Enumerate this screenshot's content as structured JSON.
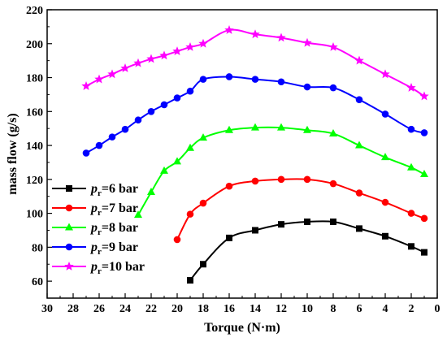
{
  "chart_data": {
    "type": "line",
    "title": "",
    "xlabel": "Torque (N·m)",
    "ylabel": "mass flow (g/s)",
    "xlim": [
      30,
      0
    ],
    "ylim": [
      50,
      220
    ],
    "x_reversed": true,
    "x_ticks": [
      30,
      28,
      26,
      24,
      22,
      20,
      18,
      16,
      14,
      12,
      10,
      8,
      6,
      4,
      2,
      0
    ],
    "y_ticks": [
      60,
      80,
      100,
      120,
      140,
      160,
      180,
      200,
      220
    ],
    "grid": false,
    "legend_position": "lower-left",
    "series": [
      {
        "name": "6 bar",
        "legend_prefix": "p",
        "legend_sub": "r",
        "legend_suffix": "=6 bar",
        "color": "#000000",
        "marker": "square",
        "x": [
          19,
          18,
          16,
          14,
          12,
          10,
          8,
          6,
          4,
          2,
          1
        ],
        "y": [
          60.5,
          70,
          85.5,
          90,
          93.5,
          95,
          95,
          91,
          86.5,
          80.5,
          77
        ]
      },
      {
        "name": "7 bar",
        "legend_prefix": "p",
        "legend_sub": "r",
        "legend_suffix": "=7 bar",
        "color": "#ff0000",
        "marker": "circle",
        "x": [
          20,
          19,
          18,
          16,
          14,
          12,
          10,
          8,
          6,
          4,
          2,
          1
        ],
        "y": [
          84.5,
          99.5,
          106,
          116,
          119,
          120,
          120,
          117.5,
          112,
          106.5,
          100,
          97
        ]
      },
      {
        "name": "8 bar",
        "legend_prefix": "p",
        "legend_sub": "r",
        "legend_suffix": "=8 bar",
        "color": "#00ff00",
        "marker": "triangle",
        "x": [
          23,
          22,
          21,
          20,
          19,
          18,
          16,
          14,
          12,
          10,
          8,
          6,
          4,
          2,
          1
        ],
        "y": [
          99,
          112.5,
          125,
          130.5,
          138.5,
          144.5,
          149,
          150.5,
          150.5,
          149,
          147,
          140,
          133,
          127,
          123
        ]
      },
      {
        "name": "9 bar",
        "legend_prefix": "p",
        "legend_sub": "r",
        "legend_suffix": "=9 bar",
        "color": "#0000ff",
        "marker": "circle",
        "x": [
          27,
          26,
          25,
          24,
          23,
          22,
          21,
          20,
          19,
          18,
          16,
          14,
          12,
          10,
          8,
          6,
          4,
          2,
          1
        ],
        "y": [
          135.5,
          140,
          145,
          149.5,
          155,
          160,
          164,
          168,
          172,
          179,
          180.5,
          179,
          177.5,
          174.5,
          174,
          167,
          158.5,
          149.5,
          147.5
        ]
      },
      {
        "name": "10 bar",
        "legend_prefix": "p",
        "legend_sub": "r",
        "legend_suffix": "=10 bar",
        "color": "#ff00ff",
        "marker": "star",
        "x": [
          27,
          26,
          25,
          24,
          23,
          22,
          21,
          20,
          19,
          18,
          16,
          14,
          12,
          10,
          8,
          6,
          4,
          2,
          1
        ],
        "y": [
          175,
          179,
          182,
          185.5,
          188.5,
          191,
          193,
          195.5,
          198,
          200,
          208,
          205.5,
          203.5,
          200.5,
          198,
          190,
          182,
          174,
          169
        ]
      }
    ]
  }
}
